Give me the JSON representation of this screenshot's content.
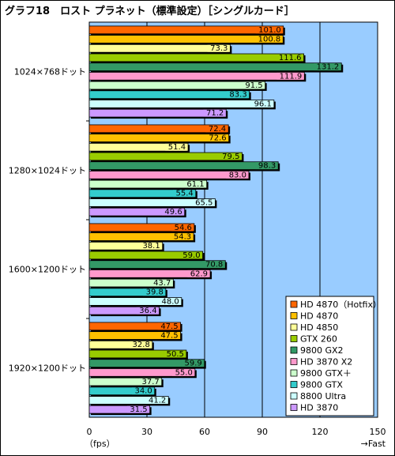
{
  "title": "グラフ18　ロスト プラネット（標準設定）［シングルカード］",
  "chart_data": {
    "type": "bar",
    "orientation": "horizontal",
    "title": "グラフ18　ロスト プラネット（標準設定）［シングルカード］",
    "xlabel": "（fps）",
    "xlabel_right": "→Fast",
    "xlim": [
      0,
      150
    ],
    "xticks": [
      0,
      30,
      60,
      90,
      120,
      150
    ],
    "grid": true,
    "legend_position": "bottom-right",
    "categories": [
      "1024×768ドット",
      "1280×1024ドット",
      "1600×1200ドット",
      "1920×1200ドット"
    ],
    "series": [
      {
        "name": "HD 4870（Hotfix）",
        "color": "#ff6600",
        "values": [
          101.0,
          72.4,
          54.6,
          47.5
        ]
      },
      {
        "name": "HD 4870",
        "color": "#ffc000",
        "values": [
          100.8,
          72.6,
          54.3,
          47.5
        ]
      },
      {
        "name": "HD 4850",
        "color": "#ffff99",
        "values": [
          73.3,
          51.4,
          38.1,
          32.8
        ]
      },
      {
        "name": "GTX 260",
        "color": "#99cc00",
        "values": [
          111.6,
          79.5,
          59.0,
          50.5
        ]
      },
      {
        "name": "9800 GX2",
        "color": "#339966",
        "values": [
          131.2,
          98.3,
          70.8,
          59.9
        ]
      },
      {
        "name": "HD 3870 X2",
        "color": "#ff99cc",
        "values": [
          111.9,
          83.0,
          62.9,
          55.0
        ]
      },
      {
        "name": "9800 GTX＋",
        "color": "#ccffcc",
        "values": [
          91.5,
          61.1,
          43.7,
          37.7
        ]
      },
      {
        "name": "9800 GTX",
        "color": "#33cccc",
        "values": [
          83.3,
          55.4,
          39.8,
          34.0
        ]
      },
      {
        "name": "8800 Ultra",
        "color": "#ccffff",
        "values": [
          96.1,
          65.5,
          48.0,
          41.2
        ]
      },
      {
        "name": "HD 3870",
        "color": "#cc99ff",
        "values": [
          71.2,
          49.6,
          36.4,
          31.5
        ]
      }
    ]
  }
}
